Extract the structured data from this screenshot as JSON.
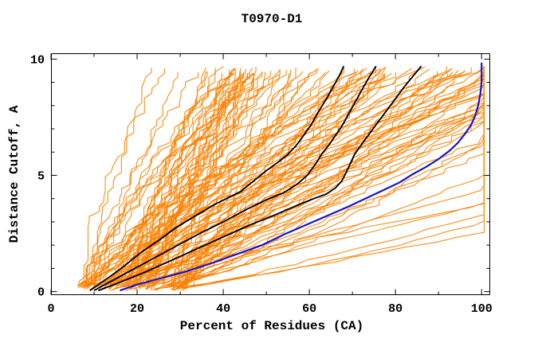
{
  "title": "T0970-D1",
  "axes": {
    "xlabel": "Percent of Residues (CA)",
    "ylabel": "Distance Cutoff, A",
    "x_tick_labels": [
      "0",
      "20",
      "40",
      "60",
      "80",
      "100"
    ],
    "y_tick_labels": [
      "0",
      "5",
      "10"
    ]
  },
  "colors": {
    "model_ensemble": "#ff8000",
    "reference_black": "#000000",
    "highlight_blue": "#1414c8",
    "frame": "#000000",
    "background": "#ffffff"
  },
  "chart_data": {
    "type": "line",
    "title": "T0970-D1",
    "xlabel": "Percent of Residues (CA)",
    "ylabel": "Distance Cutoff, A",
    "xlim": [
      0,
      102
    ],
    "ylim": [
      -0.15,
      10.25
    ],
    "grid": false,
    "legend": "none",
    "x_ticks": {
      "major": [
        0,
        20,
        40,
        60,
        80,
        100
      ],
      "minor": [
        10,
        30,
        50,
        70,
        90
      ]
    },
    "y_ticks": {
      "major": [
        0,
        5,
        10
      ],
      "minor": [
        1,
        2,
        3,
        4,
        6,
        7,
        8,
        9
      ]
    },
    "series": [
      {
        "name": "model-ensemble",
        "color": "#ff8000",
        "stroke_width": 1,
        "style": "procedural-ensemble",
        "count": 118,
        "generator": {
          "seed": 97013,
          "steps": 44,
          "x_start_min": 6,
          "x_start_span": 25,
          "steep_count": 13,
          "shallow_count": 9,
          "x_cap": 100.6,
          "y_start_min": 0.04,
          "y_start_span": 0.3,
          "y_top_min": 9.35,
          "y_top_span": 0.35,
          "noise": 1.15
        }
      },
      {
        "name": "reference-black-1",
        "color": "#000000",
        "stroke_width": 1.9,
        "points": [
          [
            9,
            0.05
          ],
          [
            13,
            0.55
          ],
          [
            17,
            1.1
          ],
          [
            21,
            1.7
          ],
          [
            25,
            2.2
          ],
          [
            29,
            2.75
          ],
          [
            33,
            3.2
          ],
          [
            38,
            3.75
          ],
          [
            44,
            4.3
          ],
          [
            47,
            4.75
          ],
          [
            50,
            5.2
          ],
          [
            53,
            5.6
          ],
          [
            55,
            5.9
          ],
          [
            57,
            6.3
          ],
          [
            59,
            6.8
          ],
          [
            60.5,
            7.2
          ],
          [
            62,
            7.7
          ],
          [
            64,
            8.3
          ],
          [
            65.5,
            8.8
          ],
          [
            67,
            9.3
          ],
          [
            68,
            9.7
          ]
        ]
      },
      {
        "name": "reference-black-2",
        "color": "#000000",
        "stroke_width": 1.9,
        "points": [
          [
            10,
            0.05
          ],
          [
            14,
            0.45
          ],
          [
            19,
            0.95
          ],
          [
            24,
            1.45
          ],
          [
            29,
            1.95
          ],
          [
            34,
            2.45
          ],
          [
            40,
            3.0
          ],
          [
            45,
            3.5
          ],
          [
            50,
            3.95
          ],
          [
            54,
            4.25
          ],
          [
            57,
            4.6
          ],
          [
            59.5,
            5.0
          ],
          [
            61.5,
            5.5
          ],
          [
            63,
            5.95
          ],
          [
            64.5,
            6.3
          ],
          [
            66,
            6.7
          ],
          [
            67.5,
            7.1
          ],
          [
            69,
            7.6
          ],
          [
            70.5,
            8.1
          ],
          [
            72,
            8.6
          ],
          [
            73.5,
            9.1
          ],
          [
            75.5,
            9.7
          ]
        ]
      },
      {
        "name": "reference-black-3",
        "color": "#000000",
        "stroke_width": 1.9,
        "points": [
          [
            11,
            0.05
          ],
          [
            16,
            0.4
          ],
          [
            22,
            0.85
          ],
          [
            28,
            1.35
          ],
          [
            34,
            1.85
          ],
          [
            40,
            2.35
          ],
          [
            46,
            2.85
          ],
          [
            52,
            3.3
          ],
          [
            57,
            3.7
          ],
          [
            61,
            4.0
          ],
          [
            64,
            4.2
          ],
          [
            66,
            4.45
          ],
          [
            67.5,
            4.75
          ],
          [
            68.5,
            5.1
          ],
          [
            69.5,
            5.5
          ],
          [
            70.5,
            5.9
          ],
          [
            72,
            6.3
          ],
          [
            74,
            6.8
          ],
          [
            76,
            7.3
          ],
          [
            78,
            7.8
          ],
          [
            80,
            8.3
          ],
          [
            82,
            8.8
          ],
          [
            84,
            9.25
          ],
          [
            86,
            9.7
          ]
        ]
      },
      {
        "name": "highlight-blue",
        "color": "#1414c8",
        "stroke_width": 2.2,
        "points": [
          [
            16,
            0.05
          ],
          [
            20,
            0.3
          ],
          [
            25,
            0.55
          ],
          [
            31,
            0.85
          ],
          [
            37,
            1.2
          ],
          [
            43,
            1.6
          ],
          [
            49,
            2.0
          ],
          [
            54,
            2.45
          ],
          [
            59,
            2.85
          ],
          [
            64,
            3.25
          ],
          [
            69,
            3.65
          ],
          [
            73,
            4.0
          ],
          [
            77,
            4.35
          ],
          [
            81,
            4.7
          ],
          [
            84,
            5.05
          ],
          [
            87,
            5.35
          ],
          [
            90,
            5.7
          ],
          [
            92.5,
            6.05
          ],
          [
            94.5,
            6.4
          ],
          [
            96,
            6.75
          ],
          [
            97.5,
            7.15
          ],
          [
            98.5,
            7.55
          ],
          [
            99.2,
            8.0
          ],
          [
            99.7,
            8.5
          ],
          [
            100,
            9.0
          ],
          [
            100,
            9.85
          ]
        ]
      }
    ]
  }
}
